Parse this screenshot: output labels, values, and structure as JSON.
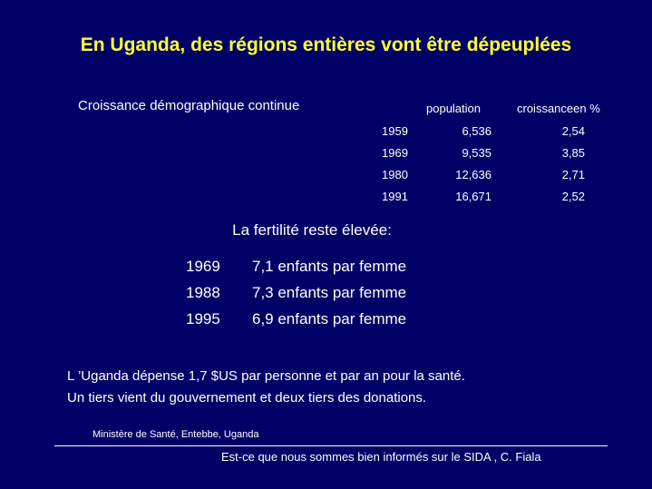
{
  "title": "En Uganda, des régions entières vont être dépeuplées",
  "growth": {
    "heading": "Croissance démographique continue",
    "columns": {
      "population": "population",
      "growth": "croissanceen %"
    },
    "rows": [
      {
        "year": "1959",
        "population": "6,536",
        "growth": "2,54"
      },
      {
        "year": "1969",
        "population": "9,535",
        "growth": "3,85"
      },
      {
        "year": "1980",
        "population": "12,636",
        "growth": "2,71"
      },
      {
        "year": "1991",
        "population": "16,671",
        "growth": "2,52"
      }
    ]
  },
  "fertility": {
    "heading": "La fertilité reste élevée:",
    "rows": [
      {
        "year": "1969",
        "value": "7,1 enfants par femme"
      },
      {
        "year": "1988",
        "value": "7,3 enfants par femme"
      },
      {
        "year": "1995",
        "value": "6,9 enfants par femme"
      }
    ]
  },
  "health_note": {
    "line1": "L ’Uganda dépense 1,7 $US par personne et par an pour la santé.",
    "line2": "Un tiers vient du gouvernement et deux tiers des donations."
  },
  "source": "Ministère de Santé, Entebbe, Uganda",
  "footer": "Est-ce que nous sommes bien informés sur le SIDA , C. Fiala",
  "colors": {
    "background": "#000066",
    "title": "#ffff33",
    "text": "#ffffff"
  }
}
